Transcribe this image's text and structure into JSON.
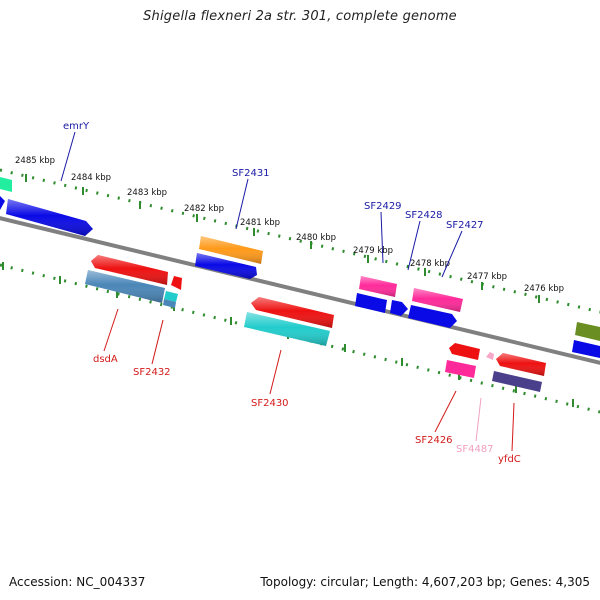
{
  "title": "Shigella flexneri 2a str. 301, complete genome",
  "footer": {
    "accession": "Accession: NC_004337",
    "summary": "Topology: circular; Length: 4,607,203 bp; Genes: 4,305"
  },
  "ticks": [
    "2485 kbp",
    "2484 kbp",
    "2483 kbp",
    "2482 kbp",
    "2481 kbp",
    "2480 kbp",
    "2479 kbp",
    "2478 kbp",
    "2477 kbp",
    "2476 kbp"
  ],
  "genes": {
    "emrY": "emrY",
    "SF2431": "SF2431",
    "SF2429": "SF2429",
    "SF2428": "SF2428",
    "SF2427": "SF2427",
    "dsdA": "dsdA",
    "SF2432": "SF2432",
    "SF2430": "SF2430",
    "SF2426": "SF2426",
    "SF4487": "SF4487",
    "yfdC": "yfdC"
  },
  "colors": {
    "backbone": "#808080",
    "ruler": "#2e8b2e",
    "blue": "#0a0ae6",
    "red": "#ee1111",
    "orange": "#ff9a1a",
    "pink": "#ff2a9a",
    "cyan": "#22cccc",
    "steel": "#4a86b8",
    "teal": "#22eea0",
    "olive": "#6b8e23",
    "navy": "#4a3f8a",
    "lightpink": "#f7a8c8"
  }
}
